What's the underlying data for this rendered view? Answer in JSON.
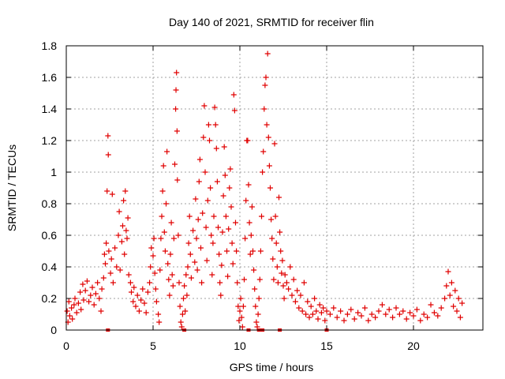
{
  "chart_data": {
    "type": "scatter",
    "title": "Day 140 of 2021, SRMTID for receiver flin",
    "xlabel": "GPS time / hours",
    "ylabel": "SRMTID / TECUs",
    "xlim": [
      0,
      24
    ],
    "ylim": [
      0,
      1.8
    ],
    "xticks": [
      0,
      5,
      10,
      15,
      20
    ],
    "xtick_labels": [
      "0",
      "5",
      "10",
      "15",
      "20"
    ],
    "yticks": [
      0,
      0.2,
      0.4,
      0.6,
      0.8,
      1,
      1.2,
      1.4,
      1.6,
      1.8
    ],
    "ytick_labels": [
      "0",
      "0.2",
      "0.4",
      "0.6",
      "0.8",
      "1",
      "1.2",
      "1.4",
      "1.6",
      "1.8"
    ],
    "grid": true,
    "marker": "plus",
    "series": [
      {
        "name": "SRMTID",
        "color": "#e00000",
        "points": [
          [
            0.05,
            0.12
          ],
          [
            0.1,
            0.05
          ],
          [
            0.15,
            0.18
          ],
          [
            0.2,
            0.09
          ],
          [
            0.3,
            0.14
          ],
          [
            0.35,
            0.07
          ],
          [
            0.45,
            0.16
          ],
          [
            0.5,
            0.2
          ],
          [
            0.6,
            0.11
          ],
          [
            0.7,
            0.17
          ],
          [
            0.8,
            0.24
          ],
          [
            0.85,
            0.13
          ],
          [
            0.95,
            0.29
          ],
          [
            1.0,
            0.19
          ],
          [
            1.1,
            0.25
          ],
          [
            1.2,
            0.31
          ],
          [
            1.3,
            0.18
          ],
          [
            1.4,
            0.22
          ],
          [
            1.5,
            0.27
          ],
          [
            1.6,
            0.16
          ],
          [
            1.7,
            0.23
          ],
          [
            1.8,
            0.3
          ],
          [
            1.9,
            0.2
          ],
          [
            2.0,
            0.12
          ],
          [
            2.05,
            0.26
          ],
          [
            2.15,
            0.33
          ],
          [
            2.2,
            0.48
          ],
          [
            2.25,
            0.42
          ],
          [
            2.3,
            0.55
          ],
          [
            2.35,
            0.88
          ],
          [
            2.4,
            1.23
          ],
          [
            2.42,
            1.11
          ],
          [
            2.45,
            0.5
          ],
          [
            2.55,
            0.36
          ],
          [
            2.6,
            0.45
          ],
          [
            2.65,
            0.86
          ],
          [
            2.7,
            0.3
          ],
          [
            2.8,
            0.52
          ],
          [
            2.9,
            0.4
          ],
          [
            3.0,
            0.6
          ],
          [
            3.05,
            0.75
          ],
          [
            3.1,
            0.38
          ],
          [
            3.2,
            0.56
          ],
          [
            3.25,
            0.66
          ],
          [
            3.3,
            0.82
          ],
          [
            3.35,
            0.48
          ],
          [
            3.4,
            0.88
          ],
          [
            3.45,
            0.63
          ],
          [
            3.5,
            0.58
          ],
          [
            3.55,
            0.71
          ],
          [
            3.6,
            0.35
          ],
          [
            3.7,
            0.3
          ],
          [
            3.75,
            0.24
          ],
          [
            3.85,
            0.18
          ],
          [
            3.9,
            0.27
          ],
          [
            4.0,
            0.15
          ],
          [
            4.1,
            0.22
          ],
          [
            4.2,
            0.12
          ],
          [
            4.3,
            0.19
          ],
          [
            4.4,
            0.26
          ],
          [
            4.5,
            0.17
          ],
          [
            4.6,
            0.11
          ],
          [
            4.7,
            0.24
          ],
          [
            4.8,
            0.3
          ],
          [
            4.85,
            0.4
          ],
          [
            4.9,
            0.52
          ],
          [
            5.0,
            0.47
          ],
          [
            5.05,
            0.58
          ],
          [
            5.1,
            0.36
          ],
          [
            5.15,
            0.26
          ],
          [
            5.2,
            0.18
          ],
          [
            5.3,
            0.1
          ],
          [
            5.35,
            0.05
          ],
          [
            5.4,
            0.38
          ],
          [
            5.45,
            0.58
          ],
          [
            5.5,
            0.72
          ],
          [
            5.55,
            0.88
          ],
          [
            5.6,
            1.04
          ],
          [
            5.65,
            0.62
          ],
          [
            5.7,
            0.5
          ],
          [
            5.75,
            0.8
          ],
          [
            5.8,
            1.13
          ],
          [
            5.85,
            0.42
          ],
          [
            5.9,
            0.32
          ],
          [
            5.95,
            0.22
          ],
          [
            6.0,
            0.48
          ],
          [
            6.05,
            0.68
          ],
          [
            6.1,
            0.35
          ],
          [
            6.15,
            0.28
          ],
          [
            6.2,
            0.58
          ],
          [
            6.25,
            1.05
          ],
          [
            6.3,
            1.4
          ],
          [
            6.32,
            1.52
          ],
          [
            6.35,
            1.63
          ],
          [
            6.38,
            1.26
          ],
          [
            6.4,
            0.95
          ],
          [
            6.45,
            0.6
          ],
          [
            6.5,
            0.3
          ],
          [
            6.55,
            0.15
          ],
          [
            6.6,
            0.05
          ],
          [
            6.65,
            0.02
          ],
          [
            6.7,
            0.1
          ],
          [
            6.75,
            0.2
          ],
          [
            6.8,
            0.28
          ],
          [
            6.85,
            0.12
          ],
          [
            6.9,
            0.35
          ],
          [
            6.95,
            0.22
          ],
          [
            7.0,
            0.4
          ],
          [
            7.05,
            0.55
          ],
          [
            7.1,
            0.72
          ],
          [
            7.15,
            0.48
          ],
          [
            7.2,
            0.33
          ],
          [
            7.3,
            0.63
          ],
          [
            7.4,
            0.43
          ],
          [
            7.45,
            0.83
          ],
          [
            7.5,
            0.58
          ],
          [
            7.55,
            0.38
          ],
          [
            7.6,
            0.7
          ],
          [
            7.65,
            0.94
          ],
          [
            7.7,
            1.08
          ],
          [
            7.75,
            0.52
          ],
          [
            7.8,
            0.3
          ],
          [
            7.85,
            0.74
          ],
          [
            7.9,
            1.22
          ],
          [
            7.95,
            1.42
          ],
          [
            8.0,
            1.0
          ],
          [
            8.05,
            0.65
          ],
          [
            8.1,
            0.44
          ],
          [
            8.15,
            0.82
          ],
          [
            8.2,
            1.3
          ],
          [
            8.25,
            1.2
          ],
          [
            8.3,
            0.9
          ],
          [
            8.35,
            0.6
          ],
          [
            8.4,
            0.35
          ],
          [
            8.45,
            0.55
          ],
          [
            8.5,
            0.72
          ],
          [
            8.55,
            1.41
          ],
          [
            8.6,
            1.3
          ],
          [
            8.65,
            1.15
          ],
          [
            8.7,
            0.94
          ],
          [
            8.75,
            0.65
          ],
          [
            8.8,
            0.48
          ],
          [
            8.85,
            0.3
          ],
          [
            8.9,
            0.22
          ],
          [
            8.95,
            0.41
          ],
          [
            9.0,
            0.62
          ],
          [
            9.05,
            0.85
          ],
          [
            9.1,
            1.16
          ],
          [
            9.15,
            0.98
          ],
          [
            9.2,
            0.72
          ],
          [
            9.25,
            0.5
          ],
          [
            9.3,
            0.34
          ],
          [
            9.35,
            0.64
          ],
          [
            9.4,
            0.9
          ],
          [
            9.45,
            1.02
          ],
          [
            9.5,
            0.78
          ],
          [
            9.55,
            0.55
          ],
          [
            9.6,
            0.42
          ],
          [
            9.65,
            1.49
          ],
          [
            9.7,
            1.39
          ],
          [
            9.75,
            0.68
          ],
          [
            9.8,
            0.5
          ],
          [
            9.85,
            0.3
          ],
          [
            9.9,
            0.15
          ],
          [
            9.95,
            0.06
          ],
          [
            10.0,
            0.12
          ],
          [
            10.05,
            0.2
          ],
          [
            10.1,
            0.08
          ],
          [
            10.15,
            0.02
          ],
          [
            10.2,
            0.15
          ],
          [
            10.25,
            0.32
          ],
          [
            10.3,
            0.58
          ],
          [
            10.35,
            0.82
          ],
          [
            10.4,
            1.2
          ],
          [
            10.45,
            1.2
          ],
          [
            10.5,
            0.92
          ],
          [
            10.55,
            0.68
          ],
          [
            10.6,
            0.48
          ],
          [
            10.65,
            0.6
          ],
          [
            10.7,
            0.78
          ],
          [
            10.75,
            0.5
          ],
          [
            10.8,
            0.38
          ],
          [
            10.85,
            0.26
          ],
          [
            10.9,
            0.15
          ],
          [
            10.95,
            0.05
          ],
          [
            11.0,
            0.02
          ],
          [
            11.05,
            0.1
          ],
          [
            11.1,
            0.2
          ],
          [
            11.15,
            0.32
          ],
          [
            11.2,
            0.5
          ],
          [
            11.25,
            0.72
          ],
          [
            11.3,
            1.0
          ],
          [
            11.35,
            1.13
          ],
          [
            11.4,
            1.4
          ],
          [
            11.45,
            1.55
          ],
          [
            11.5,
            1.6
          ],
          [
            11.55,
            1.3
          ],
          [
            11.6,
            1.75
          ],
          [
            11.65,
            1.22
          ],
          [
            11.7,
            1.04
          ],
          [
            11.75,
            0.9
          ],
          [
            11.8,
            0.7
          ],
          [
            11.85,
            0.58
          ],
          [
            11.9,
            0.45
          ],
          [
            11.95,
            0.32
          ],
          [
            12.0,
            1.18
          ],
          [
            12.05,
            0.72
          ],
          [
            12.1,
            0.55
          ],
          [
            12.15,
            0.4
          ],
          [
            12.2,
            0.3
          ],
          [
            12.25,
            0.84
          ],
          [
            12.3,
            0.62
          ],
          [
            12.35,
            0.5
          ],
          [
            12.4,
            0.36
          ],
          [
            12.45,
            0.44
          ],
          [
            12.5,
            0.28
          ],
          [
            12.55,
            0.2
          ],
          [
            12.6,
            0.35
          ],
          [
            12.7,
            0.3
          ],
          [
            12.8,
            0.26
          ],
          [
            12.9,
            0.4
          ],
          [
            13.0,
            0.22
          ],
          [
            13.1,
            0.32
          ],
          [
            13.2,
            0.18
          ],
          [
            13.3,
            0.25
          ],
          [
            13.4,
            0.14
          ],
          [
            13.5,
            0.22
          ],
          [
            13.6,
            0.12
          ],
          [
            13.7,
            0.3
          ],
          [
            13.8,
            0.1
          ],
          [
            13.9,
            0.18
          ],
          [
            14.0,
            0.08
          ],
          [
            14.1,
            0.15
          ],
          [
            14.2,
            0.1
          ],
          [
            14.3,
            0.2
          ],
          [
            14.4,
            0.12
          ],
          [
            14.5,
            0.07
          ],
          [
            14.6,
            0.16
          ],
          [
            14.7,
            0.11
          ],
          [
            14.8,
            0.14
          ],
          [
            14.9,
            0.06
          ],
          [
            15.0,
            0.12
          ],
          [
            15.2,
            0.1
          ],
          [
            15.4,
            0.14
          ],
          [
            15.6,
            0.08
          ],
          [
            15.8,
            0.12
          ],
          [
            16.0,
            0.06
          ],
          [
            16.2,
            0.1
          ],
          [
            16.4,
            0.13
          ],
          [
            16.6,
            0.07
          ],
          [
            16.8,
            0.11
          ],
          [
            17.0,
            0.09
          ],
          [
            17.2,
            0.14
          ],
          [
            17.4,
            0.06
          ],
          [
            17.6,
            0.1
          ],
          [
            17.8,
            0.08
          ],
          [
            18.0,
            0.12
          ],
          [
            18.2,
            0.16
          ],
          [
            18.4,
            0.1
          ],
          [
            18.6,
            0.13
          ],
          [
            18.8,
            0.08
          ],
          [
            19.0,
            0.14
          ],
          [
            19.2,
            0.1
          ],
          [
            19.4,
            0.12
          ],
          [
            19.6,
            0.07
          ],
          [
            19.8,
            0.11
          ],
          [
            20.0,
            0.09
          ],
          [
            20.2,
            0.13
          ],
          [
            20.4,
            0.06
          ],
          [
            20.6,
            0.1
          ],
          [
            20.8,
            0.08
          ],
          [
            21.0,
            0.16
          ],
          [
            21.2,
            0.11
          ],
          [
            21.4,
            0.09
          ],
          [
            21.6,
            0.14
          ],
          [
            21.8,
            0.2
          ],
          [
            21.9,
            0.28
          ],
          [
            22.0,
            0.37
          ],
          [
            22.1,
            0.22
          ],
          [
            22.2,
            0.3
          ],
          [
            22.3,
            0.15
          ],
          [
            22.4,
            0.25
          ],
          [
            22.5,
            0.12
          ],
          [
            22.6,
            0.2
          ],
          [
            22.7,
            0.08
          ],
          [
            22.8,
            0.17
          ]
        ]
      }
    ],
    "zero_points": [
      2.4,
      6.8,
      10.5,
      11.1,
      11.3,
      12.3,
      15.0
    ]
  }
}
